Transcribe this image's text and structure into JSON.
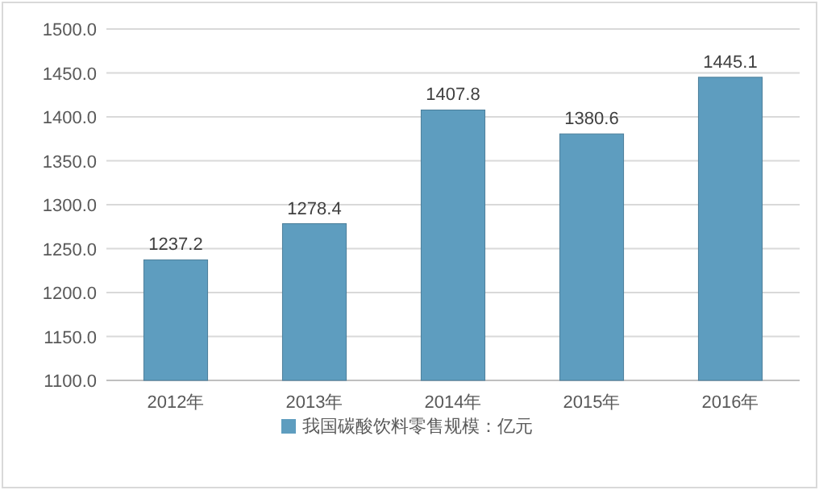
{
  "chart_data": {
    "type": "bar",
    "categories": [
      "2012年",
      "2013年",
      "2014年",
      "2015年",
      "2016年"
    ],
    "series": [
      {
        "name": "我国碳酸饮料零售规模：亿元",
        "color": "#5e9dbf",
        "values": [
          1237.2,
          1278.4,
          1407.8,
          1380.6,
          1445.1
        ]
      }
    ],
    "ylim": [
      1100,
      1500
    ],
    "yticks": [
      {
        "value": 1100,
        "label": "1100.0"
      },
      {
        "value": 1150,
        "label": "1150.0"
      },
      {
        "value": 1200,
        "label": "1200.0"
      },
      {
        "value": 1250,
        "label": "1250.0"
      },
      {
        "value": 1300,
        "label": "1300.0"
      },
      {
        "value": 1350,
        "label": "1350.0"
      },
      {
        "value": 1400,
        "label": "1400.0"
      },
      {
        "value": 1450,
        "label": "1450.0"
      },
      {
        "value": 1500,
        "label": "1500.0"
      }
    ],
    "data_labels": true,
    "grid": "y",
    "legend": "bottom"
  }
}
